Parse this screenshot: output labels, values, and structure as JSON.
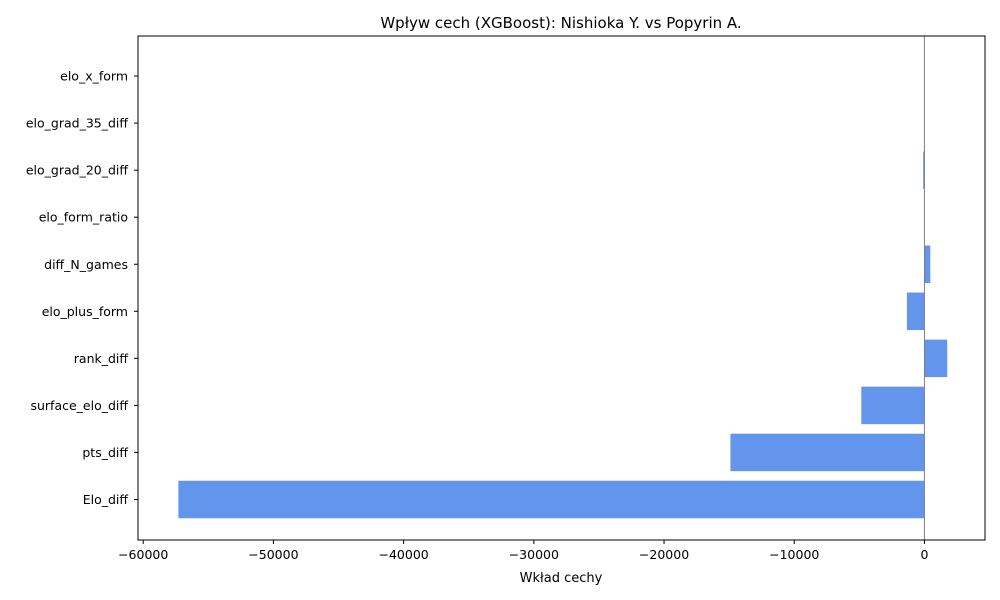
{
  "chart_data": {
    "type": "bar",
    "orientation": "horizontal",
    "title": "Wpływ cech (XGBoost): Nishioka Y. vs Popyrin A.",
    "xlabel": "Wkład cechy",
    "ylabel": "",
    "categories": [
      "Elo_diff",
      "pts_diff",
      "surface_elo_diff",
      "rank_diff",
      "elo_plus_form",
      "diff_N_games",
      "elo_form_ratio",
      "elo_grad_20_diff",
      "elo_grad_35_diff",
      "elo_x_form"
    ],
    "values": [
      -57300,
      -14900,
      -4850,
      1750,
      -1350,
      450,
      0,
      -100,
      0,
      0
    ],
    "xlim": [
      -60400,
      4650
    ],
    "xticks": [
      -60000,
      -50000,
      -40000,
      -30000,
      -20000,
      -10000,
      0
    ],
    "xtick_labels": [
      "−60000",
      "−50000",
      "−40000",
      "−30000",
      "−20000",
      "−10000",
      "0"
    ],
    "zero_line": true,
    "grid": false,
    "colors": {
      "bar": "#6495ED",
      "zero_line": "#808080",
      "axis": "#000000"
    }
  }
}
